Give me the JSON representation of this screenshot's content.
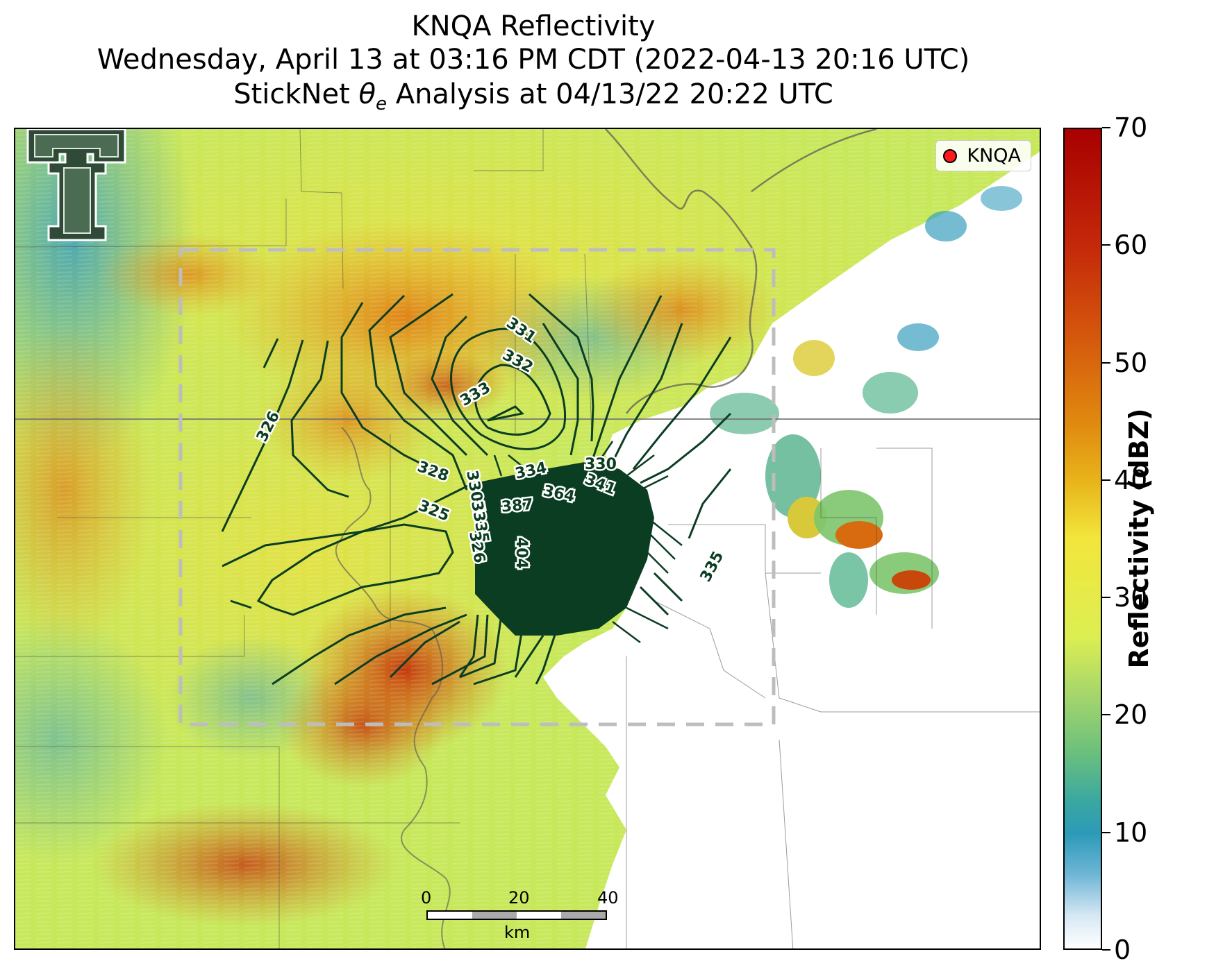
{
  "title": {
    "line1": "KNQA Reflectivity",
    "line2": "Wednesday, April 13 at 03:16 PM CDT (2022-04-13 20:16 UTC)",
    "line3_prefix": "StickNet ",
    "line3_suffix": " Analysis at 04/13/22 20:22 UTC"
  },
  "legend": {
    "label": "KNQA",
    "marker_color": "#ff1a1a"
  },
  "colorbar": {
    "label": "Reflectivity (dBZ)",
    "ticks": [
      "0",
      "10",
      "20",
      "30",
      "40",
      "50",
      "60",
      "70"
    ],
    "range": [
      0,
      70
    ]
  },
  "scale_bar": {
    "ticks": [
      "0",
      "20",
      "40"
    ],
    "unit": "km"
  },
  "contour_labels": [
    "326",
    "328",
    "325",
    "331",
    "332",
    "333",
    "334",
    "330",
    "341",
    "364",
    "387",
    "404",
    "335",
    "3305",
    "3335",
    "326",
    "335"
  ],
  "colors": {
    "contour": "#0b3d22",
    "analysis_box": "#bdbdbd"
  },
  "logo": "texas-tech-double-t-logo"
}
